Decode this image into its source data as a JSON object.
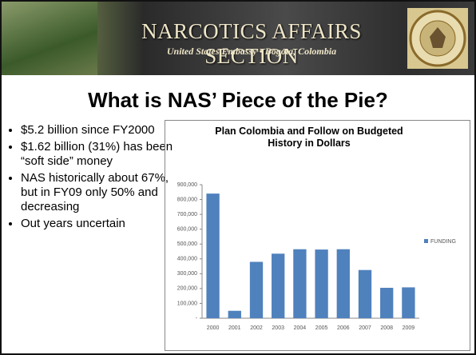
{
  "header": {
    "title": "NARCOTICS AFFAIRS SECTION",
    "subtitle": "United States Embassy • Bogota, Colombia"
  },
  "slide_title": "What is NAS’ Piece of the Pie?",
  "bullets": [
    "$5.2 billion since FY2000",
    "$1.62 billion (31%) has been “soft side” money",
    "NAS historically about 67%, but in FY09 only 50% and decreasing",
    "Out years uncertain"
  ],
  "chart_data": {
    "type": "bar",
    "title": "Plan Colombia and Follow on Budgeted History in Dollars",
    "categories": [
      "2000",
      "2001",
      "2002",
      "2003",
      "2004",
      "2005",
      "2006",
      "2007",
      "2008",
      "2009"
    ],
    "series": [
      {
        "name": "FUNDING",
        "color": "#4f81bd",
        "values": [
          840000,
          50000,
          380000,
          435000,
          465000,
          463000,
          465000,
          325000,
          205000,
          208000
        ]
      }
    ],
    "ylim": [
      0,
      900000
    ],
    "yticks": [
      {
        "value": 0,
        "label": "-"
      },
      {
        "value": 100000,
        "label": "100,000"
      },
      {
        "value": 200000,
        "label": "200,000"
      },
      {
        "value": 300000,
        "label": "300,000"
      },
      {
        "value": 400000,
        "label": "400,000"
      },
      {
        "value": 500000,
        "label": "500,000"
      },
      {
        "value": 600000,
        "label": "600,000"
      },
      {
        "value": 700000,
        "label": "700,000"
      },
      {
        "value": 800000,
        "label": "800,000"
      },
      {
        "value": 900000,
        "label": "900,000"
      }
    ],
    "legend": "right"
  }
}
